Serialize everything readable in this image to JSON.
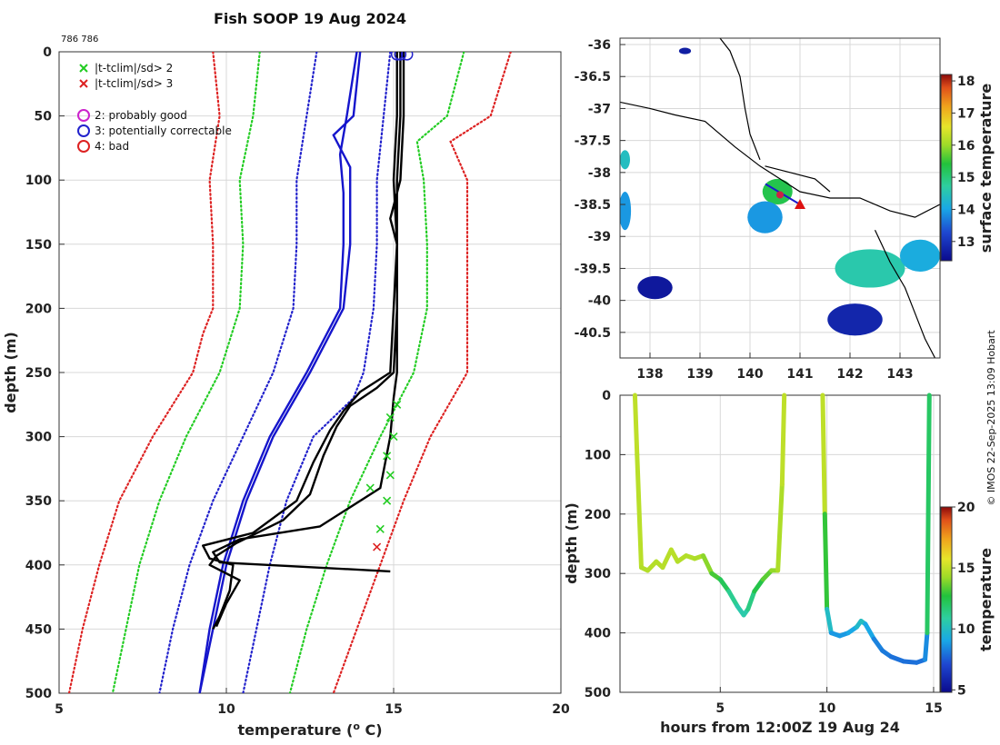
{
  "credit": "© IMOS 22-Sep-2025 13:09 Hobart",
  "chart_data": [
    {
      "id": "profiles",
      "type": "line",
      "title": "Fish SOOP 19 Aug 2024",
      "id_label": "786 786",
      "xlabel": "temperature (",
      "xlabel_sup": "o",
      "xlabel_end": " C)",
      "ylabel": "depth (m)",
      "xlim": [
        5,
        20
      ],
      "ylim": [
        0,
        500
      ],
      "xticks": [
        "5",
        "10",
        "15",
        "20"
      ],
      "yticks": [
        "0",
        "50",
        "100",
        "150",
        "200",
        "250",
        "300",
        "350",
        "400",
        "450",
        "500"
      ],
      "legend": [
        {
          "label": "|t-tclim|/sd> 2",
          "marker": "x",
          "color": "#22cc22"
        },
        {
          "label": "|t-tclim|/sd> 3",
          "marker": "x",
          "color": "#dd2222"
        },
        {
          "label": "2: probably good",
          "marker": "o",
          "color": "#cc22cc"
        },
        {
          "label": "3: potentially correctable",
          "marker": "o",
          "color": "#2222cc"
        },
        {
          "label": "4: bad",
          "marker": "o",
          "color": "#dd2222"
        }
      ],
      "clim_dotted": [
        {
          "name": "left 3sd",
          "color": "#dd2222",
          "depth": [
            0,
            50,
            100,
            150,
            200,
            220,
            250,
            300,
            350,
            400,
            450,
            500
          ],
          "temp": [
            9.6,
            9.8,
            9.5,
            9.6,
            9.6,
            9.3,
            9.0,
            7.8,
            6.8,
            6.2,
            5.7,
            5.3
          ]
        },
        {
          "name": "left 2sd",
          "color": "#22cc22",
          "depth": [
            0,
            50,
            100,
            150,
            200,
            250,
            300,
            350,
            400,
            450,
            500
          ],
          "temp": [
            11.0,
            10.8,
            10.4,
            10.5,
            10.4,
            9.8,
            8.8,
            8.0,
            7.4,
            7.0,
            6.6
          ]
        },
        {
          "name": "mean",
          "color": "#2222cc",
          "depth": [
            0,
            50,
            100,
            150,
            200,
            250,
            300,
            350,
            400,
            450,
            500
          ],
          "temp": [
            12.7,
            12.4,
            12.1,
            12.1,
            12.0,
            11.4,
            10.5,
            9.6,
            8.9,
            8.4,
            8.0
          ]
        },
        {
          "name": "right mean",
          "color": "#2222cc",
          "depth": [
            0,
            50,
            100,
            150,
            200,
            250,
            270,
            300,
            350,
            400,
            450,
            500
          ],
          "temp": [
            14.9,
            14.7,
            14.5,
            14.5,
            14.4,
            14.1,
            13.8,
            12.6,
            11.8,
            11.3,
            10.9,
            10.5
          ]
        },
        {
          "name": "right 2sd",
          "color": "#22cc22",
          "depth": [
            0,
            50,
            70,
            100,
            150,
            200,
            250,
            300,
            350,
            400,
            450,
            500
          ],
          "temp": [
            17.1,
            16.6,
            15.7,
            15.9,
            16.0,
            16.0,
            15.6,
            14.6,
            13.7,
            13.0,
            12.4,
            11.9
          ]
        },
        {
          "name": "right 3sd",
          "color": "#dd2222",
          "depth": [
            0,
            50,
            70,
            100,
            150,
            200,
            250,
            300,
            350,
            400,
            450,
            500
          ],
          "temp": [
            18.5,
            17.9,
            16.7,
            17.2,
            17.2,
            17.2,
            17.2,
            16.1,
            15.3,
            14.6,
            13.9,
            13.2
          ]
        }
      ],
      "clim_solid": [
        {
          "name": "clim a",
          "color": "#1515cc",
          "depth": [
            0,
            50,
            65,
            90,
            150,
            200,
            250,
            300,
            350,
            400,
            450,
            500
          ],
          "temp": [
            14.0,
            13.8,
            13.2,
            13.7,
            13.7,
            13.5,
            12.5,
            11.4,
            10.6,
            10.0,
            9.6,
            9.2
          ]
        },
        {
          "name": "clim b",
          "color": "#1515cc",
          "depth": [
            0,
            50,
            80,
            110,
            150,
            200,
            250,
            300,
            350,
            400,
            450,
            500
          ],
          "temp": [
            13.9,
            13.6,
            13.4,
            13.5,
            13.5,
            13.4,
            12.4,
            11.3,
            10.5,
            9.9,
            9.5,
            9.2
          ]
        }
      ],
      "casts": [
        {
          "name": "cast 1",
          "depth": [
            0,
            50,
            100,
            150,
            200,
            250,
            265,
            280,
            295,
            320,
            350,
            375,
            385,
            395,
            400,
            420,
            440,
            450
          ],
          "temp": [
            15.1,
            15.1,
            15.0,
            15.1,
            15.0,
            14.9,
            14.0,
            13.5,
            13.1,
            12.6,
            12.1,
            10.8,
            9.3,
            9.5,
            10.2,
            10.1,
            9.8,
            9.6
          ]
        },
        {
          "name": "cast 2",
          "depth": [
            0,
            50,
            100,
            150,
            200,
            250,
            262,
            276,
            292,
            315,
            345,
            365,
            383,
            393,
            400,
            412,
            430,
            448
          ],
          "temp": [
            15.2,
            15.2,
            15.1,
            15.1,
            15.1,
            15.0,
            14.5,
            13.7,
            13.3,
            12.9,
            12.5,
            11.7,
            10.3,
            9.7,
            9.5,
            10.4,
            10.0,
            9.7
          ]
        },
        {
          "name": "cast 3",
          "depth": [
            0,
            50,
            100,
            130,
            150,
            200,
            250,
            270,
            300,
            340,
            370,
            380,
            390,
            398,
            405
          ],
          "temp": [
            15.3,
            15.3,
            15.2,
            14.9,
            15.1,
            15.1,
            15.1,
            15.0,
            14.9,
            14.6,
            12.8,
            10.4,
            9.6,
            9.8,
            14.9
          ]
        }
      ],
      "qc_markers": [
        {
          "temp": 15.1,
          "depth": 275,
          "color": "#22cc22"
        },
        {
          "temp": 14.9,
          "depth": 285,
          "color": "#22cc22"
        },
        {
          "temp": 15.0,
          "depth": 300,
          "color": "#22cc22"
        },
        {
          "temp": 14.8,
          "depth": 315,
          "color": "#22cc22"
        },
        {
          "temp": 14.9,
          "depth": 330,
          "color": "#22cc22"
        },
        {
          "temp": 14.3,
          "depth": 340,
          "color": "#22cc22"
        },
        {
          "temp": 14.8,
          "depth": 350,
          "color": "#22cc22"
        },
        {
          "temp": 14.6,
          "depth": 372,
          "color": "#22cc22"
        },
        {
          "temp": 14.5,
          "depth": 386,
          "color": "#dd2222"
        }
      ],
      "qc_circles": [
        {
          "temp": 15.1,
          "depth": 2,
          "color": "#2222cc"
        },
        {
          "temp": 15.2,
          "depth": 2,
          "color": "#2222cc"
        },
        {
          "temp": 15.4,
          "depth": 2,
          "color": "#2222cc"
        }
      ]
    },
    {
      "id": "map",
      "type": "heatmap",
      "xlim": [
        137.4,
        143.8
      ],
      "ylim": [
        -40.9,
        -35.9
      ],
      "xticks": [
        "138",
        "139",
        "140",
        "141",
        "142",
        "143"
      ],
      "yticks": [
        "-36",
        "-36.5",
        "-37",
        "-37.5",
        "-38",
        "-38.5",
        "-39",
        "-39.5",
        "-40",
        "-40.5"
      ],
      "colorbar_label": "surface temperature",
      "colorbar_range": [
        12.4,
        18.2
      ],
      "colorbar_ticks": [
        "13",
        "14",
        "15",
        "16",
        "17",
        "18"
      ],
      "coast": [
        [
          137.4,
          -36.9
        ],
        [
          138.0,
          -37.0
        ],
        [
          138.5,
          -37.1
        ],
        [
          139.1,
          -37.2
        ],
        [
          139.7,
          -37.6
        ],
        [
          140.2,
          -37.9
        ],
        [
          140.6,
          -38.1
        ],
        [
          141.0,
          -38.3
        ],
        [
          141.6,
          -38.4
        ],
        [
          142.2,
          -38.4
        ],
        [
          142.8,
          -38.6
        ],
        [
          143.3,
          -38.7
        ],
        [
          143.8,
          -38.5
        ]
      ],
      "coast2": [
        [
          139.4,
          -35.9
        ],
        [
          139.6,
          -36.1
        ],
        [
          139.8,
          -36.5
        ],
        [
          139.9,
          -37.0
        ],
        [
          140.0,
          -37.4
        ],
        [
          140.2,
          -37.8
        ]
      ],
      "coast3": [
        [
          140.3,
          -37.9
        ],
        [
          140.8,
          -38.0
        ],
        [
          141.3,
          -38.1
        ],
        [
          141.6,
          -38.3
        ]
      ],
      "coast4": [
        [
          142.5,
          -38.9
        ],
        [
          142.8,
          -39.4
        ],
        [
          143.1,
          -39.8
        ],
        [
          143.3,
          -40.2
        ],
        [
          143.5,
          -40.6
        ],
        [
          143.7,
          -40.9
        ]
      ],
      "sst_patches": [
        {
          "lon": 140.55,
          "lat": -38.3,
          "rx": 0.3,
          "ry": 0.2,
          "value": 15.3
        },
        {
          "lon": 140.3,
          "lat": -38.7,
          "rx": 0.35,
          "ry": 0.25,
          "value": 13.9
        },
        {
          "lon": 142.4,
          "lat": -39.5,
          "rx": 0.7,
          "ry": 0.3,
          "value": 14.6
        },
        {
          "lon": 143.4,
          "lat": -39.3,
          "rx": 0.4,
          "ry": 0.25,
          "value": 14.1
        },
        {
          "lon": 138.1,
          "lat": -39.8,
          "rx": 0.35,
          "ry": 0.18,
          "value": 12.6
        },
        {
          "lon": 142.1,
          "lat": -40.3,
          "rx": 0.55,
          "ry": 0.25,
          "value": 12.8
        },
        {
          "lon": 137.5,
          "lat": -38.6,
          "rx": 0.12,
          "ry": 0.3,
          "value": 13.9
        },
        {
          "lon": 137.5,
          "lat": -37.8,
          "rx": 0.1,
          "ry": 0.15,
          "value": 14.4
        },
        {
          "lon": 138.7,
          "lat": -36.1,
          "rx": 0.12,
          "ry": 0.05,
          "value": 12.7
        }
      ],
      "track_start": {
        "lon": 140.6,
        "lat": -38.35
      },
      "track_end": {
        "lon": 141.0,
        "lat": -38.5
      }
    },
    {
      "id": "timeseries",
      "type": "scatter",
      "xlabel": "hours from 12:00Z 19 Aug 24",
      "ylabel": "depth (m)",
      "xlim": [
        0.3,
        15.3
      ],
      "ylim": [
        0,
        500
      ],
      "xticks": [
        "5",
        "10",
        "15"
      ],
      "xtick_values": [
        5,
        10,
        15
      ],
      "yticks": [
        "0",
        "100",
        "200",
        "300",
        "400",
        "500"
      ],
      "colorbar_label": "temperature",
      "colorbar_range": [
        4.8,
        20
      ],
      "colorbar_ticks": [
        "5",
        "10",
        "15",
        "20"
      ],
      "colorbar_tick_values": [
        5,
        10,
        15,
        20
      ],
      "segments": [
        {
          "t": [
            1.0,
            1.1,
            1.3,
            1.6,
            2.0,
            2.3,
            2.7,
            3.0,
            3.4,
            3.8,
            4.2,
            4.6,
            5.0,
            5.4,
            5.8,
            6.1,
            6.3,
            6.6,
            7.0,
            7.4,
            7.7,
            7.9,
            8.0
          ],
          "depth": [
            0,
            100,
            290,
            295,
            280,
            290,
            260,
            280,
            270,
            275,
            270,
            300,
            310,
            330,
            355,
            370,
            360,
            330,
            310,
            295,
            295,
            150,
            0
          ],
          "temp": [
            14.9,
            14.9,
            14.7,
            14.6,
            14.8,
            14.6,
            14.9,
            14.7,
            14.7,
            14.6,
            14.5,
            13.5,
            12.8,
            11.6,
            10.7,
            10.5,
            10.8,
            12.0,
            12.9,
            13.9,
            14.3,
            14.8,
            15.0
          ]
        },
        {
          "t": [
            9.8,
            9.9,
            10.0,
            10.2,
            10.6,
            11.0,
            11.4,
            11.6,
            11.8,
            12.2,
            12.6,
            13.0,
            13.6,
            14.2,
            14.6,
            14.7,
            14.8
          ],
          "depth": [
            0,
            200,
            360,
            400,
            405,
            400,
            390,
            380,
            385,
            410,
            430,
            440,
            448,
            450,
            445,
            400,
            0
          ],
          "temp": [
            15.0,
            14.8,
            11.0,
            8.9,
            8.6,
            8.9,
            9.2,
            10.4,
            9.7,
            8.4,
            8.2,
            8.0,
            7.9,
            7.9,
            8.0,
            9.0,
            15.0
          ]
        }
      ]
    }
  ]
}
